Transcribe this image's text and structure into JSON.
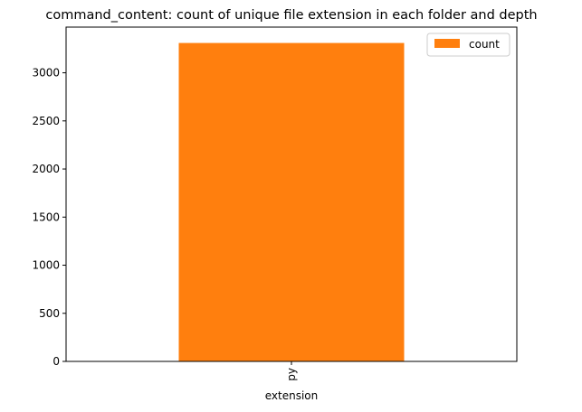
{
  "colors": {
    "bar": "#ff7f0e",
    "axes": "#000000",
    "background": "#ffffff",
    "legend_border": "#cccccc"
  },
  "chart_data": {
    "type": "bar",
    "title": "command_content: count of unique file extension in each folder and depth",
    "xlabel": "extension",
    "ylabel": "",
    "categories": [
      "py"
    ],
    "series": [
      {
        "name": "count",
        "values": [
          3310
        ]
      }
    ],
    "ylim": [
      0,
      3475
    ],
    "yticks": [
      0,
      500,
      1000,
      1500,
      2000,
      2500,
      3000
    ],
    "grid": false,
    "legend_position": "top-right",
    "x_tick_rotation": 90
  }
}
